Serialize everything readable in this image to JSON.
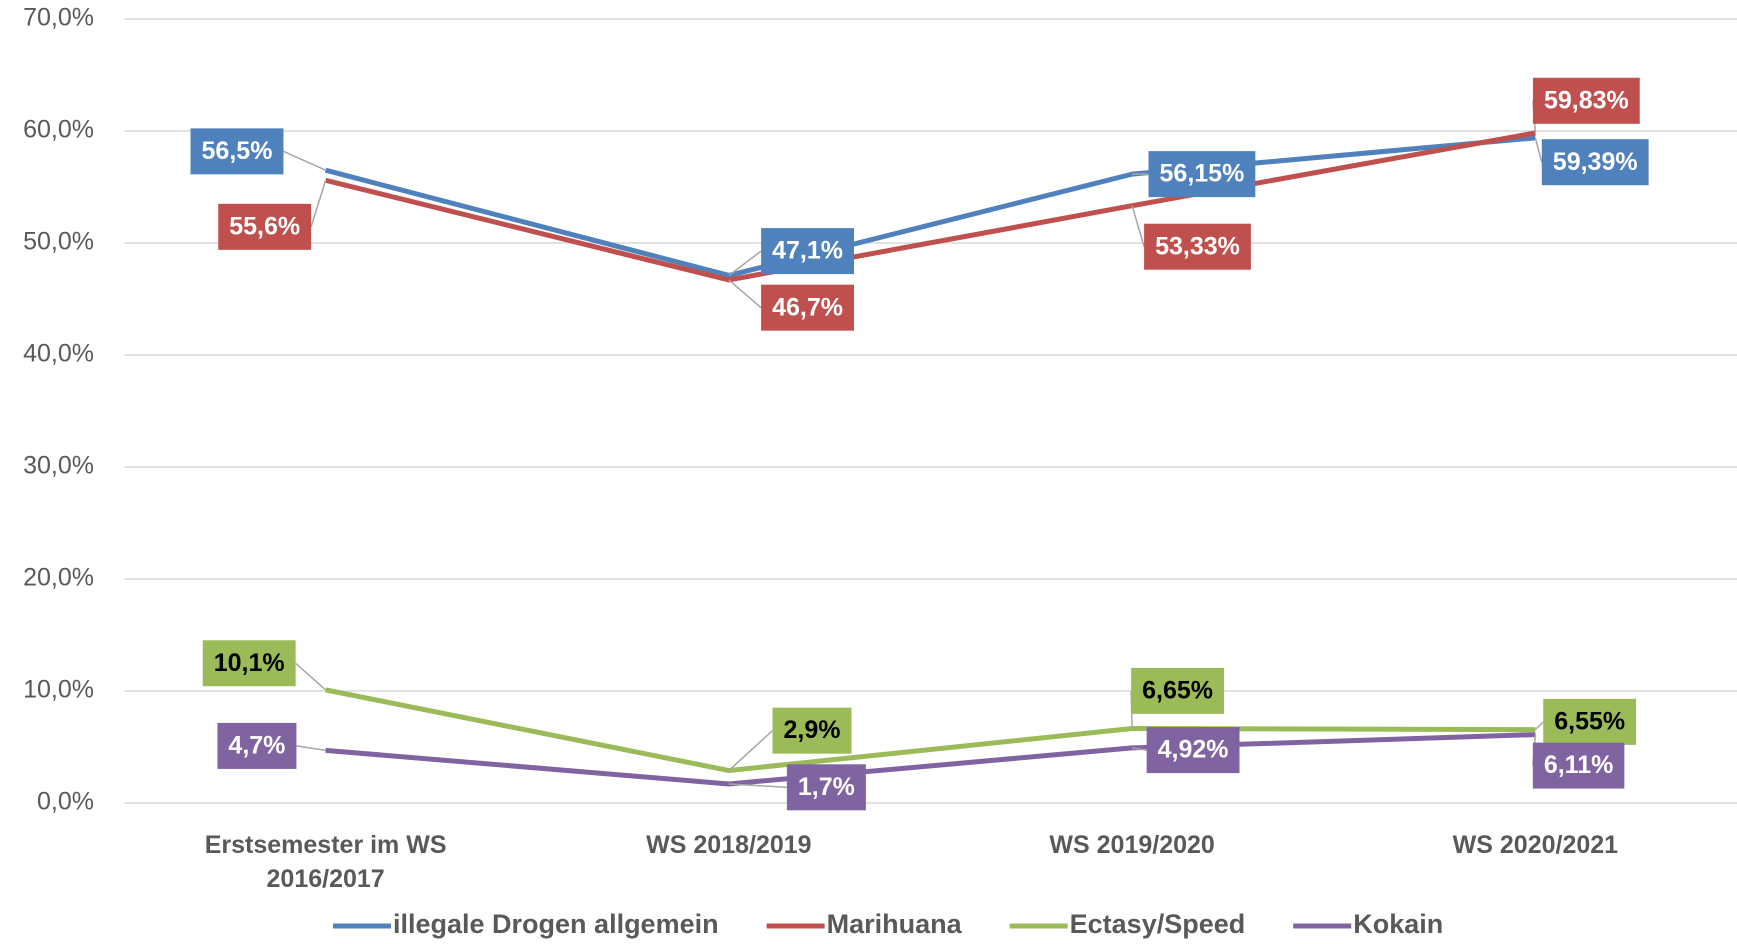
{
  "chart_data": {
    "type": "line",
    "categories": [
      "Erstsemester im WS 2016/2017",
      "WS 2018/2019",
      "WS 2019/2020",
      "WS 2020/2021"
    ],
    "series": [
      {
        "name": "illegale Drogen allgemein",
        "color": "#4f81bd",
        "values": [
          56.5,
          47.1,
          56.15,
          59.39
        ],
        "value_labels": [
          "56,5%",
          "47,1%",
          "56,15%",
          "59,39%"
        ]
      },
      {
        "name": "Marihuana",
        "color": "#c0504d",
        "values": [
          55.6,
          46.7,
          53.33,
          59.83
        ],
        "value_labels": [
          "55,6%",
          "46,7%",
          "53,33%",
          "59,83%"
        ]
      },
      {
        "name": "Ectasy/Speed",
        "color": "#9bbb59",
        "values": [
          10.1,
          2.9,
          6.65,
          6.55
        ],
        "value_labels": [
          "10,1%",
          "2,9%",
          "6,65%",
          "6,55%"
        ]
      },
      {
        "name": "Kokain",
        "color": "#8064a2",
        "values": [
          4.7,
          1.7,
          4.92,
          6.11
        ],
        "value_labels": [
          "4,7%",
          "1,7%",
          "4,92%",
          "6,11%"
        ]
      }
    ],
    "ylim": [
      0,
      70
    ],
    "yticks": [
      {
        "value": 0,
        "label": "0,0%"
      },
      {
        "value": 10,
        "label": "10,0%"
      },
      {
        "value": 20,
        "label": "20,0%"
      },
      {
        "value": 30,
        "label": "30,0%"
      },
      {
        "value": 40,
        "label": "40,0%"
      },
      {
        "value": 50,
        "label": "50,0%"
      },
      {
        "value": 60,
        "label": "60,0%"
      },
      {
        "value": 70,
        "label": "70,0%"
      }
    ],
    "grid": true,
    "legend": "bottom"
  }
}
